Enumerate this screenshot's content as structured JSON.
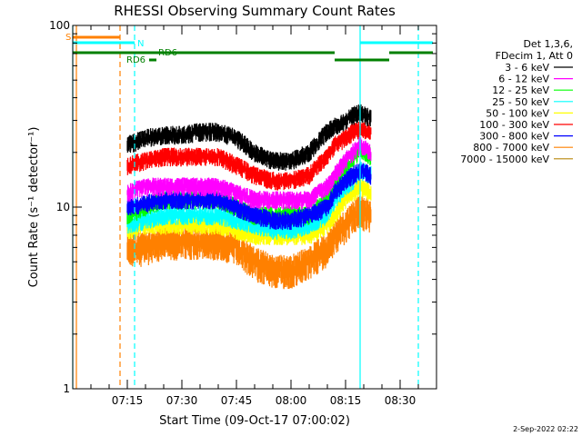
{
  "chart_data": {
    "type": "line",
    "title": "RHESSI Observing Summary Count Rates",
    "xlabel": "Start Time (09-Oct-17 07:00:02)",
    "ylabel": "Count Rate (s⁻¹ detector⁻¹)",
    "yscale": "log",
    "ylim": [
      1,
      100
    ],
    "xlim": [
      "07:00",
      "08:40"
    ],
    "y_ticks": [
      "1",
      "10",
      "100"
    ],
    "x_ticks": [
      "07:15",
      "07:30",
      "07:45",
      "08:00",
      "08:15",
      "08:30"
    ],
    "legend_header": [
      "Det 1,3,6,",
      "FDecim 1, Att 0"
    ],
    "legend_position": "right",
    "footer": "2-Sep-2022 02:22",
    "data_gaps": [
      [
        "07:00",
        "07:14"
      ],
      [
        "08:23",
        "08:40"
      ]
    ],
    "annotations": [
      "S",
      "N",
      "RD6",
      "RD6"
    ],
    "flag_bars": [
      {
        "label": "S",
        "color": "#ff8000",
        "segments": [
          [
            "07:00",
            "07:13"
          ]
        ],
        "row": 1
      },
      {
        "label": "N",
        "color": "#00ffff",
        "segments": [
          [
            "07:00",
            "07:17"
          ],
          [
            "08:19",
            "08:39"
          ]
        ],
        "row": 2
      },
      {
        "label": "RD6",
        "color": "#008000",
        "segments": [
          [
            "07:00",
            "08:12"
          ],
          [
            "08:27",
            "08:39"
          ]
        ],
        "row": 3
      },
      {
        "label": "RD6",
        "color": "#008000",
        "segments": [
          [
            "07:21",
            "07:23"
          ],
          [
            "08:12",
            "08:27"
          ]
        ],
        "row": 4
      }
    ],
    "vertical_markers": [
      {
        "time": "07:00",
        "color": "#00ffff",
        "style": "solid"
      },
      {
        "time": "07:01",
        "color": "#ff8000",
        "style": "solid"
      },
      {
        "time": "07:13",
        "color": "#ff8000",
        "style": "dashed"
      },
      {
        "time": "07:17",
        "color": "#00ffff",
        "style": "dashed"
      },
      {
        "time": "08:19",
        "color": "#00ffff",
        "style": "solid"
      },
      {
        "time": "08:35",
        "color": "#00ffff",
        "style": "dashed"
      }
    ],
    "series": [
      {
        "name": "3 - 6 keV",
        "color": "#000000",
        "x": [
          "07:15",
          "07:20",
          "07:25",
          "07:30",
          "07:35",
          "07:40",
          "07:45",
          "07:50",
          "07:55",
          "08:00",
          "08:05",
          "08:10",
          "08:12",
          "08:15",
          "08:17",
          "08:19",
          "08:22"
        ],
        "values": [
          22,
          24,
          25,
          25,
          26,
          26,
          24,
          20,
          18,
          18,
          20,
          26,
          28,
          30,
          32,
          33,
          31
        ]
      },
      {
        "name": "6 - 12 keV",
        "color": "#ff00ff",
        "x": [
          "07:15",
          "07:20",
          "07:25",
          "07:30",
          "07:35",
          "07:40",
          "07:45",
          "07:50",
          "07:55",
          "08:00",
          "08:05",
          "08:10",
          "08:12",
          "08:15",
          "08:17",
          "08:19",
          "08:22"
        ],
        "values": [
          12,
          13,
          13,
          13,
          13,
          13,
          12,
          11,
          11,
          11,
          11,
          13,
          15,
          18,
          20,
          22,
          20
        ]
      },
      {
        "name": "12 - 25 keV",
        "color": "#00ff00",
        "x": [
          "07:15",
          "07:20",
          "07:25",
          "07:30",
          "07:35",
          "07:40",
          "07:45",
          "07:50",
          "07:55",
          "08:00",
          "08:05",
          "08:10",
          "08:12",
          "08:15",
          "08:17",
          "08:19",
          "08:22"
        ],
        "values": [
          9,
          10,
          11,
          11,
          11,
          11,
          10,
          9,
          9,
          9,
          9,
          11,
          13,
          16,
          18,
          21,
          19
        ]
      },
      {
        "name": "25 - 50 keV",
        "color": "#00ffff",
        "x": [
          "07:15",
          "07:20",
          "07:25",
          "07:30",
          "07:35",
          "07:40",
          "07:45",
          "07:50",
          "07:55",
          "08:00",
          "08:05",
          "08:10",
          "08:12",
          "08:15",
          "08:17",
          "08:19",
          "08:22"
        ],
        "values": [
          8,
          8.5,
          9,
          9,
          9,
          9,
          8.5,
          8,
          7.5,
          7.5,
          8,
          9,
          11,
          13,
          14,
          16,
          15
        ]
      },
      {
        "name": "50 - 100 keV",
        "color": "#ffff00",
        "x": [
          "07:15",
          "07:20",
          "07:25",
          "07:30",
          "07:35",
          "07:40",
          "07:45",
          "07:50",
          "07:55",
          "08:00",
          "08:05",
          "08:10",
          "08:12",
          "08:15",
          "08:17",
          "08:19",
          "08:22"
        ],
        "values": [
          7.5,
          8,
          8,
          8,
          8,
          8,
          7.5,
          7,
          7,
          7,
          7,
          8,
          9,
          11,
          12,
          13,
          12
        ]
      },
      {
        "name": "100 - 300 keV",
        "color": "#ff0000",
        "x": [
          "07:15",
          "07:20",
          "07:25",
          "07:30",
          "07:35",
          "07:40",
          "07:45",
          "07:50",
          "07:55",
          "08:00",
          "08:05",
          "08:10",
          "08:12",
          "08:15",
          "08:17",
          "08:19",
          "08:22"
        ],
        "values": [
          17,
          18,
          19,
          19,
          19,
          19,
          17,
          15,
          14,
          14,
          15,
          19,
          22,
          24,
          26,
          27,
          26
        ]
      },
      {
        "name": "300 - 800 keV",
        "color": "#0000ff",
        "x": [
          "07:15",
          "07:20",
          "07:25",
          "07:30",
          "07:35",
          "07:40",
          "07:45",
          "07:50",
          "07:55",
          "08:00",
          "08:05",
          "08:10",
          "08:12",
          "08:15",
          "08:17",
          "08:19",
          "08:22"
        ],
        "values": [
          10,
          10.5,
          11,
          11,
          11,
          11,
          10,
          9,
          8.5,
          8.5,
          9,
          10,
          12,
          14,
          15,
          16,
          15
        ]
      },
      {
        "name": "800 - 7000 keV",
        "color": "#ff8000",
        "x": [
          "07:15",
          "07:20",
          "07:25",
          "07:30",
          "07:35",
          "07:40",
          "07:45",
          "07:50",
          "07:55",
          "08:00",
          "08:05",
          "08:10",
          "08:12",
          "08:15",
          "08:17",
          "08:19",
          "08:22"
        ],
        "values": [
          6,
          6,
          6.5,
          6.5,
          6.5,
          6.5,
          6,
          5,
          4.5,
          4.5,
          5,
          6,
          7,
          8,
          9,
          9.5,
          9
        ]
      },
      {
        "name": "7000 - 15000 keV",
        "color": "#b8860b",
        "x": [],
        "values": []
      }
    ]
  }
}
